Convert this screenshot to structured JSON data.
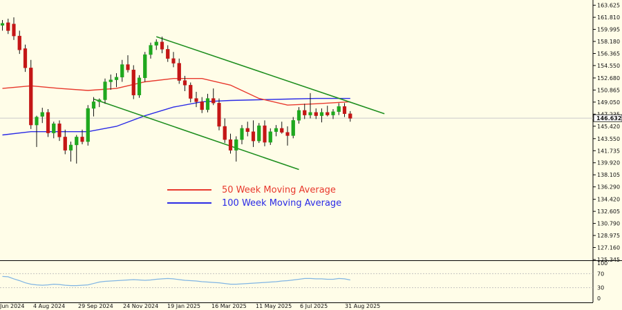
{
  "chart_data": {
    "type": "candlestick",
    "symbol_current_price": "146.632",
    "price_axis": {
      "ylim": [
        125.345,
        164.0
      ],
      "ticks": [
        "163.625",
        "161.810",
        "159.995",
        "158.180",
        "156.365",
        "154.550",
        "152.680",
        "150.865",
        "149.050",
        "147.235",
        "145.420",
        "143.550",
        "141.735",
        "139.920",
        "138.105",
        "136.290",
        "134.420",
        "132.605",
        "130.790",
        "128.975",
        "127.160",
        "125.345"
      ]
    },
    "time_axis": {
      "labels": [
        "Jun 2024",
        "4 Aug 2024",
        "29 Sep 2024",
        "24 Nov 2024",
        "19 Jan 2025",
        "16 Mar 2025",
        "11 May 2025",
        "6 Jul 2025",
        "31 Aug 2025"
      ]
    },
    "candles": [
      {
        "o": 160.6,
        "h": 161.4,
        "l": 159.8,
        "c": 160.9
      },
      {
        "o": 161.0,
        "h": 161.6,
        "l": 159.3,
        "c": 159.8
      },
      {
        "o": 160.8,
        "h": 161.8,
        "l": 158.4,
        "c": 159.0
      },
      {
        "o": 159.0,
        "h": 159.8,
        "l": 156.3,
        "c": 156.9
      },
      {
        "o": 157.1,
        "h": 157.7,
        "l": 153.6,
        "c": 154.2
      },
      {
        "o": 154.2,
        "h": 155.4,
        "l": 145.0,
        "c": 145.6
      },
      {
        "o": 145.6,
        "h": 147.0,
        "l": 142.3,
        "c": 146.8
      },
      {
        "o": 146.9,
        "h": 148.2,
        "l": 145.9,
        "c": 147.5
      },
      {
        "o": 147.5,
        "h": 148.0,
        "l": 143.8,
        "c": 144.4
      },
      {
        "o": 144.4,
        "h": 146.1,
        "l": 143.6,
        "c": 145.8
      },
      {
        "o": 145.8,
        "h": 146.3,
        "l": 143.2,
        "c": 143.8
      },
      {
        "o": 143.8,
        "h": 144.9,
        "l": 141.2,
        "c": 141.8
      },
      {
        "o": 141.8,
        "h": 143.1,
        "l": 140.1,
        "c": 142.6
      },
      {
        "o": 142.6,
        "h": 144.1,
        "l": 139.8,
        "c": 143.8
      },
      {
        "o": 143.8,
        "h": 144.9,
        "l": 142.7,
        "c": 143.1
      },
      {
        "o": 143.1,
        "h": 148.6,
        "l": 142.5,
        "c": 148.1
      },
      {
        "o": 148.1,
        "h": 149.8,
        "l": 146.9,
        "c": 149.1
      },
      {
        "o": 149.1,
        "h": 149.6,
        "l": 148.3,
        "c": 149.4
      },
      {
        "o": 149.4,
        "h": 152.6,
        "l": 148.8,
        "c": 152.1
      },
      {
        "o": 152.1,
        "h": 153.2,
        "l": 150.9,
        "c": 152.4
      },
      {
        "o": 152.4,
        "h": 153.4,
        "l": 151.3,
        "c": 152.8
      },
      {
        "o": 152.8,
        "h": 155.4,
        "l": 152.1,
        "c": 154.7
      },
      {
        "o": 154.7,
        "h": 156.1,
        "l": 153.5,
        "c": 153.9
      },
      {
        "o": 153.9,
        "h": 154.6,
        "l": 149.5,
        "c": 150.1
      },
      {
        "o": 150.1,
        "h": 153.1,
        "l": 149.7,
        "c": 152.7
      },
      {
        "o": 152.7,
        "h": 156.6,
        "l": 152.1,
        "c": 156.2
      },
      {
        "o": 156.2,
        "h": 158.0,
        "l": 155.6,
        "c": 157.6
      },
      {
        "o": 157.6,
        "h": 158.5,
        "l": 156.9,
        "c": 158.1
      },
      {
        "o": 158.1,
        "h": 158.9,
        "l": 156.4,
        "c": 157.0
      },
      {
        "o": 157.0,
        "h": 157.6,
        "l": 155.1,
        "c": 155.6
      },
      {
        "o": 155.6,
        "h": 156.6,
        "l": 154.3,
        "c": 154.9
      },
      {
        "o": 154.9,
        "h": 155.6,
        "l": 151.8,
        "c": 152.3
      },
      {
        "o": 152.3,
        "h": 153.0,
        "l": 150.7,
        "c": 151.6
      },
      {
        "o": 151.6,
        "h": 152.0,
        "l": 149.0,
        "c": 149.6
      },
      {
        "o": 149.6,
        "h": 150.6,
        "l": 148.3,
        "c": 149.1
      },
      {
        "o": 149.1,
        "h": 149.8,
        "l": 147.4,
        "c": 147.9
      },
      {
        "o": 147.9,
        "h": 150.3,
        "l": 147.5,
        "c": 149.6
      },
      {
        "o": 149.6,
        "h": 151.1,
        "l": 148.6,
        "c": 148.9
      },
      {
        "o": 148.9,
        "h": 149.6,
        "l": 144.8,
        "c": 145.4
      },
      {
        "o": 145.4,
        "h": 146.6,
        "l": 142.9,
        "c": 143.4
      },
      {
        "o": 143.4,
        "h": 144.3,
        "l": 141.3,
        "c": 141.8
      },
      {
        "o": 141.8,
        "h": 143.9,
        "l": 140.1,
        "c": 143.4
      },
      {
        "o": 143.4,
        "h": 145.6,
        "l": 142.7,
        "c": 145.1
      },
      {
        "o": 145.1,
        "h": 146.1,
        "l": 143.9,
        "c": 144.6
      },
      {
        "o": 144.6,
        "h": 146.3,
        "l": 142.3,
        "c": 143.2
      },
      {
        "o": 143.2,
        "h": 145.9,
        "l": 142.9,
        "c": 145.5
      },
      {
        "o": 145.5,
        "h": 146.3,
        "l": 142.4,
        "c": 143.0
      },
      {
        "o": 143.0,
        "h": 145.1,
        "l": 142.6,
        "c": 144.6
      },
      {
        "o": 144.6,
        "h": 145.6,
        "l": 143.9,
        "c": 145.1
      },
      {
        "o": 145.1,
        "h": 146.1,
        "l": 144.3,
        "c": 144.5
      },
      {
        "o": 144.5,
        "h": 145.4,
        "l": 142.5,
        "c": 144.0
      },
      {
        "o": 144.0,
        "h": 146.8,
        "l": 143.6,
        "c": 146.3
      },
      {
        "o": 146.3,
        "h": 148.3,
        "l": 145.8,
        "c": 147.8
      },
      {
        "o": 147.8,
        "h": 148.8,
        "l": 146.5,
        "c": 147.1
      },
      {
        "o": 147.1,
        "h": 150.4,
        "l": 146.6,
        "c": 147.5
      },
      {
        "o": 147.5,
        "h": 148.1,
        "l": 146.5,
        "c": 147.0
      },
      {
        "o": 147.0,
        "h": 148.1,
        "l": 146.0,
        "c": 147.5
      },
      {
        "o": 147.5,
        "h": 148.5,
        "l": 146.9,
        "c": 147.1
      },
      {
        "o": 147.1,
        "h": 148.0,
        "l": 146.5,
        "c": 147.6
      },
      {
        "o": 147.6,
        "h": 148.9,
        "l": 147.1,
        "c": 148.4
      },
      {
        "o": 148.4,
        "h": 148.9,
        "l": 146.8,
        "c": 147.3
      },
      {
        "o": 147.3,
        "h": 147.7,
        "l": 146.1,
        "c": 146.6
      }
    ],
    "ma50": [
      [
        0,
        151.1
      ],
      [
        5,
        151.5
      ],
      [
        10,
        151.1
      ],
      [
        15,
        150.8
      ],
      [
        20,
        151.1
      ],
      [
        25,
        152.1
      ],
      [
        30,
        152.6
      ],
      [
        35,
        152.6
      ],
      [
        40,
        151.6
      ],
      [
        45,
        149.6
      ],
      [
        50,
        148.6
      ],
      [
        55,
        148.8
      ],
      [
        61,
        149.1
      ]
    ],
    "ma100": [
      [
        0,
        144.1
      ],
      [
        5,
        144.6
      ],
      [
        10,
        144.6
      ],
      [
        15,
        144.6
      ],
      [
        20,
        145.4
      ],
      [
        25,
        147.0
      ],
      [
        30,
        148.3
      ],
      [
        35,
        149.1
      ],
      [
        40,
        149.3
      ],
      [
        45,
        149.4
      ],
      [
        50,
        149.5
      ],
      [
        55,
        149.6
      ],
      [
        61,
        149.6
      ]
    ],
    "channel": {
      "upper": [
        [
          27,
          158.9
        ],
        [
          67,
          147.3
        ]
      ],
      "lower": [
        [
          16,
          149.5
        ],
        [
          52,
          138.9
        ]
      ]
    },
    "legend": [
      {
        "label": "50 Week Moving Average",
        "color": "#e8382c"
      },
      {
        "label": "100 Week Moving Average",
        "color": "#2a2ae6"
      }
    ],
    "oscillator": {
      "ylim": [
        0,
        100
      ],
      "ticks": [
        "100",
        "70",
        "30",
        "0"
      ],
      "values": [
        62,
        61,
        55,
        50,
        44,
        40,
        38,
        37,
        38,
        40,
        39,
        37,
        36,
        36,
        37,
        38,
        42,
        46,
        48,
        49,
        50,
        51,
        52,
        53,
        52,
        51,
        52,
        54,
        55,
        56,
        55,
        53,
        51,
        50,
        49,
        47,
        46,
        45,
        44,
        42,
        40,
        40,
        41,
        42,
        43,
        44,
        45,
        46,
        47,
        49,
        50,
        52,
        54,
        56,
        56,
        55,
        55,
        54,
        54,
        56,
        55,
        52
      ]
    },
    "colors": {
      "background": "#fffde8",
      "bull": "#1fa81f",
      "bear": "#c41616",
      "channel": "#1f8f1f",
      "oscillator": "#7fb4e3"
    }
  }
}
